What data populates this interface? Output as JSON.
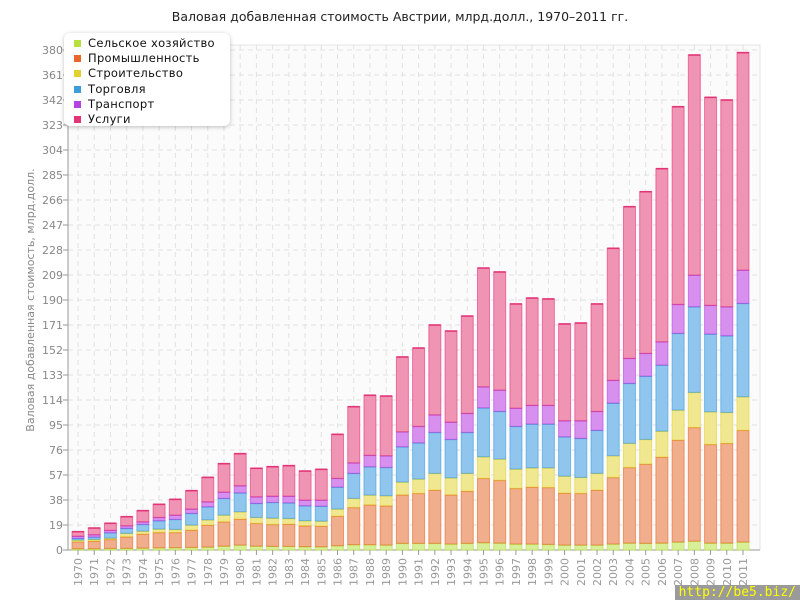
{
  "chart_data": {
    "type": "bar",
    "stacked": true,
    "title": "Валовая добавленная стоимость Австрии, млрд.долл., 1970–2011 гг.",
    "xlabel": "",
    "ylabel": "Валовая добавленная стоимость, млрд.долл.",
    "ylim": [
      0,
      380
    ],
    "yticks": [
      0,
      19,
      38,
      57,
      76,
      95,
      114,
      133,
      152,
      171,
      190,
      209,
      228,
      247,
      266,
      285,
      304,
      323,
      342,
      361,
      380
    ],
    "grid": true,
    "legend_position": "top-left",
    "categories": [
      "1970",
      "1971",
      "1972",
      "1973",
      "1974",
      "1975",
      "1976",
      "1977",
      "1978",
      "1979",
      "1980",
      "1981",
      "1982",
      "1983",
      "1984",
      "1985",
      "1986",
      "1987",
      "1988",
      "1989",
      "1990",
      "1991",
      "1992",
      "1993",
      "1994",
      "1995",
      "1996",
      "1997",
      "1998",
      "1999",
      "2000",
      "2001",
      "2002",
      "2003",
      "2004",
      "2005",
      "2006",
      "2007",
      "2008",
      "2009",
      "2010",
      "2011"
    ],
    "series": [
      {
        "name": "Сельское хозяйство",
        "color": "#b8e03c",
        "values": [
          1.0,
          1.0,
          1.2,
          1.3,
          1.5,
          1.7,
          1.8,
          2.0,
          2.3,
          3.0,
          3.8,
          3.0,
          2.8,
          2.8,
          2.6,
          2.5,
          3.3,
          4.1,
          4.1,
          3.8,
          5.1,
          5.1,
          5.1,
          4.6,
          5.1,
          5.6,
          5.3,
          4.6,
          4.6,
          4.3,
          3.8,
          3.8,
          3.8,
          4.6,
          5.3,
          5.1,
          5.3,
          6.1,
          6.8,
          5.3,
          5.3,
          6.1
        ]
      },
      {
        "name": "Промышленность",
        "color": "#e8682c",
        "values": [
          5.3,
          5.8,
          6.9,
          8.8,
          10.7,
          11.7,
          11.6,
          13.2,
          16.7,
          18.5,
          19.8,
          17.3,
          16.7,
          16.9,
          15.9,
          15.7,
          22.5,
          28.3,
          30.3,
          29.9,
          36.9,
          38.0,
          40.5,
          37.4,
          39.7,
          48.9,
          47.7,
          42.3,
          43.3,
          43.3,
          39.5,
          39.3,
          41.8,
          50.6,
          57.5,
          60.3,
          65.4,
          77.5,
          86.4,
          75.0,
          75.8,
          84.9
        ]
      },
      {
        "name": "Строительство",
        "color": "#e2d030",
        "values": [
          1.3,
          1.3,
          1.0,
          2.6,
          2.2,
          2.6,
          2.3,
          3.8,
          4.0,
          5.1,
          5.5,
          4.5,
          4.8,
          4.3,
          3.8,
          3.8,
          5.4,
          6.9,
          7.4,
          7.6,
          9.7,
          10.9,
          12.7,
          12.9,
          13.5,
          16.4,
          16.2,
          14.7,
          14.6,
          14.9,
          12.9,
          12.1,
          12.7,
          16.5,
          18.3,
          18.7,
          19.7,
          22.8,
          26.6,
          24.8,
          23.5,
          25.5
        ]
      },
      {
        "name": "Торговля",
        "color": "#3c9cdc",
        "values": [
          1.3,
          1.8,
          4.1,
          3.8,
          5.1,
          6.3,
          7.6,
          8.9,
          9.9,
          12.7,
          14.4,
          10.7,
          11.9,
          11.9,
          11.4,
          11.4,
          16.7,
          19.0,
          21.5,
          21.5,
          26.8,
          27.5,
          31.1,
          29.2,
          31.1,
          37.2,
          36.2,
          32.4,
          33.3,
          33.3,
          29.9,
          29.7,
          32.7,
          40.0,
          45.6,
          48.1,
          50.2,
          58.3,
          65.1,
          59.1,
          58.3,
          71.0
        ]
      },
      {
        "name": "Транспорт",
        "color": "#b444e0",
        "values": [
          1.7,
          1.8,
          1.8,
          2.0,
          2.0,
          2.5,
          3.3,
          3.3,
          3.8,
          4.8,
          5.4,
          5.0,
          4.8,
          5.1,
          4.3,
          4.6,
          6.6,
          8.0,
          8.7,
          8.9,
          11.4,
          12.5,
          13.4,
          13.2,
          14.5,
          16.0,
          16.2,
          13.9,
          14.2,
          14.2,
          12.2,
          13.4,
          14.4,
          17.3,
          19.0,
          17.3,
          17.7,
          22.0,
          24.1,
          21.8,
          22.0,
          25.3
        ]
      },
      {
        "name": "Услуги",
        "color": "#e43478",
        "values": [
          3.3,
          5.0,
          5.3,
          6.8,
          8.4,
          9.9,
          11.9,
          13.9,
          18.5,
          21.5,
          24.3,
          21.6,
          22.3,
          23.1,
          22.0,
          23.3,
          33.4,
          42.6,
          45.6,
          45.3,
          56.8,
          59.5,
          68.2,
          69.1,
          73.9,
          90.2,
          89.7,
          79.1,
          81.5,
          80.8,
          73.5,
          74.2,
          81.6,
          100.3,
          115.2,
          122.8,
          131.5,
          150.2,
          167.2,
          158.0,
          157.1,
          165.2
        ]
      }
    ]
  },
  "watermark": "http://be5.biz/"
}
